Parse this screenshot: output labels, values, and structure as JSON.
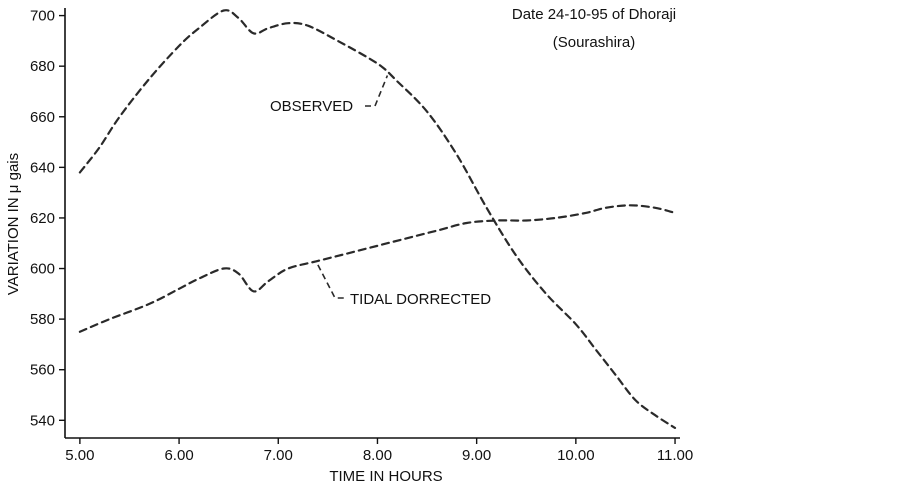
{
  "chart_data": {
    "type": "line",
    "title": "Date 24-10-95 of Dhoraji",
    "subtitle": "(Sourashira)",
    "xlabel": "TIME IN HOURS",
    "ylabel": "VARIATION IN μ gais",
    "xlim": [
      4.85,
      11.05
    ],
    "ylim": [
      533,
      703
    ],
    "x_ticks": [
      5,
      6,
      7,
      8,
      9,
      10,
      11
    ],
    "x_tick_labels": [
      "5.00",
      "6.00",
      "7.00",
      "8.00",
      "9.00",
      "10.00",
      "11.00"
    ],
    "y_ticks": [
      540,
      560,
      580,
      600,
      620,
      640,
      660,
      680,
      700
    ],
    "y_tick_labels": [
      "540",
      "560",
      "580",
      "600",
      "620",
      "640",
      "660",
      "680",
      "700"
    ],
    "grid": false,
    "series": [
      {
        "name": "OBSERVED",
        "x": [
          5.0,
          5.2,
          5.4,
          5.7,
          6.0,
          6.2,
          6.45,
          6.6,
          6.75,
          6.9,
          7.1,
          7.3,
          7.6,
          8.0,
          8.2,
          8.5,
          8.8,
          9.1,
          9.4,
          9.7,
          10.0,
          10.2,
          10.4,
          10.6,
          10.8,
          11.0
        ],
        "values": [
          638,
          648,
          660,
          675,
          688,
          695,
          702,
          699,
          693,
          695,
          697,
          696,
          690,
          681,
          674,
          662,
          645,
          624,
          605,
          590,
          578,
          568,
          558,
          548,
          542,
          537
        ]
      },
      {
        "name": "TIDAL DORRECTED",
        "x": [
          5.0,
          5.3,
          5.7,
          6.0,
          6.2,
          6.45,
          6.6,
          6.75,
          6.9,
          7.1,
          7.4,
          7.7,
          8.0,
          8.3,
          8.6,
          8.9,
          9.2,
          9.5,
          9.8,
          10.1,
          10.3,
          10.55,
          10.8,
          11.0
        ],
        "values": [
          575,
          580,
          586,
          592,
          596,
          600,
          598,
          591,
          595,
          600,
          603,
          606,
          609,
          612,
          615,
          618,
          619,
          619,
          620,
          622,
          624,
          625,
          624,
          622
        ]
      }
    ],
    "annotations": [
      {
        "text": "OBSERVED",
        "series": "OBSERVED",
        "at_x": 8.1
      },
      {
        "text": "TIDAL DORRECTED",
        "series": "TIDAL DORRECTED",
        "at_x": 7.4
      }
    ]
  }
}
